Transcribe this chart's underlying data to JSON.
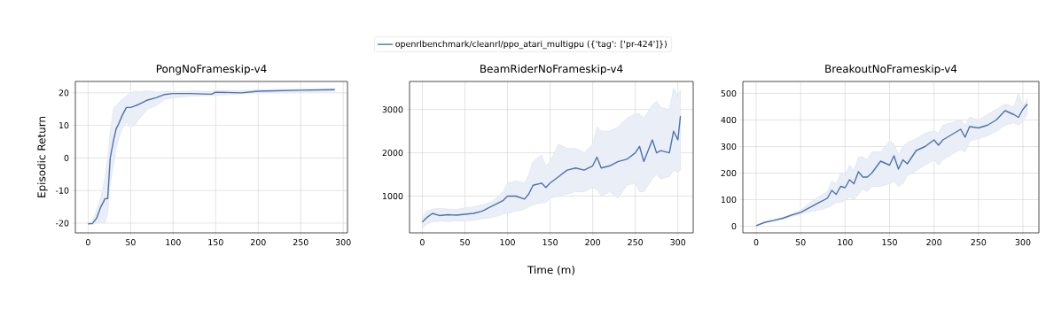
{
  "chart_data": [
    {
      "type": "line",
      "title": "PongNoFrameskip-v4",
      "ylabel": "Episodic Return",
      "legend": "top",
      "grid": true,
      "xlim": [
        -15,
        305
      ],
      "ylim": [
        -23,
        23.5
      ],
      "xticks": [
        0,
        50,
        100,
        150,
        200,
        250,
        300
      ],
      "yticks": [
        -20,
        -10,
        0,
        10,
        20
      ],
      "x": [
        0,
        5,
        10,
        15,
        20,
        23,
        26,
        30,
        33,
        36,
        40,
        45,
        50,
        55,
        60,
        70,
        80,
        90,
        100,
        120,
        145,
        150,
        180,
        200,
        250,
        290
      ],
      "series": [
        {
          "name": "openrlbenchmark/cleanrl/ppo_atari_multigpu ({'tag': ['pr-424']})",
          "color": "#4c72b0",
          "values": [
            -20.2,
            -20.1,
            -18.5,
            -15,
            -12.5,
            -12.5,
            0,
            5.5,
            9,
            10.5,
            13,
            15.5,
            15.5,
            16,
            16.5,
            17.8,
            18.5,
            19.5,
            19.8,
            19.8,
            19.6,
            20.2,
            20.0,
            20.5,
            20.8,
            21
          ],
          "lower": [
            -20.5,
            -20.5,
            -20,
            -19.7,
            -20,
            -17,
            -8,
            -2,
            3,
            6,
            9,
            11,
            9.5,
            10,
            12,
            15,
            16,
            18,
            18.5,
            19,
            19.2,
            19.3,
            19.7,
            20,
            20.3,
            20.5
          ],
          "upper": [
            -19.8,
            -19.5,
            -16,
            -12,
            -6,
            0,
            8,
            15.5,
            16,
            17,
            18,
            19,
            20,
            20.5,
            20.3,
            20.6,
            20.2,
            20.5,
            20.3,
            20.6,
            20.4,
            20.8,
            20.7,
            21,
            21.1,
            21.3
          ]
        }
      ]
    },
    {
      "type": "line",
      "title": "BeamRiderNoFrameskip-v4",
      "xlabel": "Time (m)",
      "grid": true,
      "xlim": [
        -15,
        318
      ],
      "ylim": [
        150,
        3650
      ],
      "xticks": [
        0,
        50,
        100,
        150,
        200,
        250,
        300
      ],
      "yticks": [
        1000,
        2000,
        3000
      ],
      "x": [
        0,
        5,
        12,
        20,
        30,
        40,
        50,
        60,
        70,
        80,
        90,
        95,
        100,
        110,
        120,
        125,
        130,
        140,
        145,
        150,
        160,
        170,
        180,
        190,
        200,
        205,
        210,
        220,
        230,
        240,
        250,
        255,
        260,
        270,
        275,
        280,
        290,
        295,
        300,
        303
      ],
      "series": [
        {
          "color": "#4c72b0",
          "values": [
            400,
            500,
            600,
            550,
            570,
            560,
            580,
            600,
            650,
            750,
            850,
            900,
            1000,
            1000,
            930,
            1050,
            1250,
            1300,
            1200,
            1300,
            1450,
            1600,
            1650,
            1600,
            1700,
            1900,
            1650,
            1700,
            1800,
            1850,
            2000,
            2150,
            1800,
            2300,
            2000,
            2050,
            2000,
            2500,
            2300,
            2850
          ],
          "lower": [
            250,
            350,
            400,
            420,
            410,
            430,
            420,
            440,
            480,
            500,
            550,
            600,
            600,
            650,
            700,
            750,
            800,
            850,
            850,
            950,
            1000,
            1050,
            1100,
            1100,
            1200,
            1150,
            1000,
            1100,
            950,
            1250,
            1300,
            1100,
            1100,
            1400,
            1500,
            1400,
            1450,
            1600,
            1550,
            1600
          ],
          "upper": [
            500,
            650,
            700,
            720,
            700,
            690,
            730,
            750,
            800,
            850,
            1000,
            1100,
            1300,
            1350,
            1300,
            1500,
            1800,
            1950,
            1700,
            1800,
            2200,
            2100,
            2100,
            2000,
            2200,
            2600,
            2500,
            2500,
            2600,
            2800,
            2900,
            2900,
            2800,
            3100,
            3200,
            3050,
            3000,
            3500,
            3300,
            3450
          ]
        }
      ]
    },
    {
      "type": "line",
      "title": "BreakoutNoFrameskip-v4",
      "grid": true,
      "xlim": [
        -15,
        318
      ],
      "ylim": [
        -25,
        545
      ],
      "xticks": [
        0,
        50,
        100,
        150,
        200,
        250,
        300
      ],
      "yticks": [
        0,
        100,
        200,
        300,
        400,
        500
      ],
      "x": [
        0,
        10,
        20,
        30,
        40,
        50,
        60,
        70,
        80,
        85,
        90,
        95,
        100,
        105,
        110,
        115,
        120,
        125,
        130,
        140,
        150,
        155,
        160,
        165,
        170,
        180,
        190,
        200,
        205,
        210,
        220,
        230,
        235,
        240,
        250,
        260,
        270,
        280,
        290,
        295,
        300,
        305
      ],
      "series": [
        {
          "color": "#4c72b0",
          "values": [
            2,
            15,
            22,
            30,
            42,
            52,
            70,
            88,
            105,
            135,
            120,
            150,
            145,
            175,
            160,
            205,
            185,
            185,
            200,
            245,
            230,
            265,
            215,
            250,
            235,
            285,
            300,
            325,
            305,
            325,
            345,
            365,
            335,
            375,
            370,
            380,
            400,
            435,
            420,
            410,
            440,
            460
          ],
          "lower": [
            0,
            13,
            20,
            27,
            37,
            45,
            55,
            60,
            70,
            78,
            90,
            90,
            97,
            110,
            100,
            120,
            140,
            130,
            150,
            150,
            160,
            170,
            150,
            160,
            190,
            210,
            230,
            250,
            230,
            250,
            270,
            290,
            280,
            320,
            330,
            340,
            357,
            380,
            390,
            380,
            395,
            420
          ],
          "upper": [
            4,
            17,
            25,
            33,
            47,
            60,
            88,
            110,
            130,
            170,
            160,
            200,
            190,
            230,
            210,
            260,
            260,
            250,
            280,
            280,
            320,
            310,
            270,
            300,
            315,
            330,
            350,
            360,
            350,
            380,
            390,
            400,
            380,
            410,
            400,
            420,
            440,
            460,
            450,
            500,
            450,
            480
          ]
        }
      ]
    }
  ]
}
